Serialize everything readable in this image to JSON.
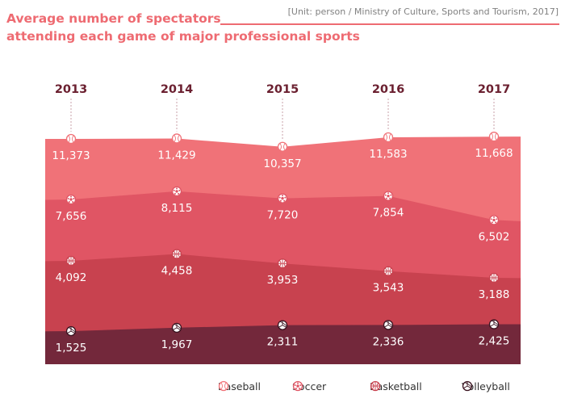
{
  "chart_data": {
    "type": "area",
    "title": "Average number of spectators attending each game of major professional sports",
    "title_lines": [
      "Average number of spectators",
      "attending each game of major professional sports"
    ],
    "unit_note": "[Unit: person / Ministry of Culture, Sports and Tourism, 2017]",
    "categories": [
      "2013",
      "2014",
      "2015",
      "2016",
      "2017"
    ],
    "series": [
      {
        "name": "Baseball",
        "values": [
          11373,
          11429,
          10357,
          11583,
          11668
        ],
        "labels": [
          "11,373",
          "11,429",
          "10,357",
          "11,583",
          "11,668"
        ],
        "color": "#f07278",
        "icon": "baseball-icon"
      },
      {
        "name": "Soccer",
        "values": [
          7656,
          8115,
          7720,
          7854,
          6502
        ],
        "labels": [
          "7,656",
          "8,115",
          "7,720",
          "7,854",
          "6,502"
        ],
        "color": "#e05564",
        "icon": "soccer-ball-icon"
      },
      {
        "name": "Basketball",
        "values": [
          4092,
          4458,
          3953,
          3543,
          3188
        ],
        "labels": [
          "4,092",
          "4,458",
          "3,953",
          "3,543",
          "3,188"
        ],
        "color": "#c8424f",
        "icon": "basketball-icon"
      },
      {
        "name": "Volleyball",
        "values": [
          1525,
          1967,
          2311,
          2336,
          2425
        ],
        "labels": [
          "1,525",
          "1,967",
          "2,311",
          "2,336",
          "2,425"
        ],
        "color": "#73283b",
        "icon": "volleyball-icon"
      }
    ],
    "legend": [
      "Baseball",
      "Soccer",
      "Basketball",
      "Volleyball"
    ]
  }
}
